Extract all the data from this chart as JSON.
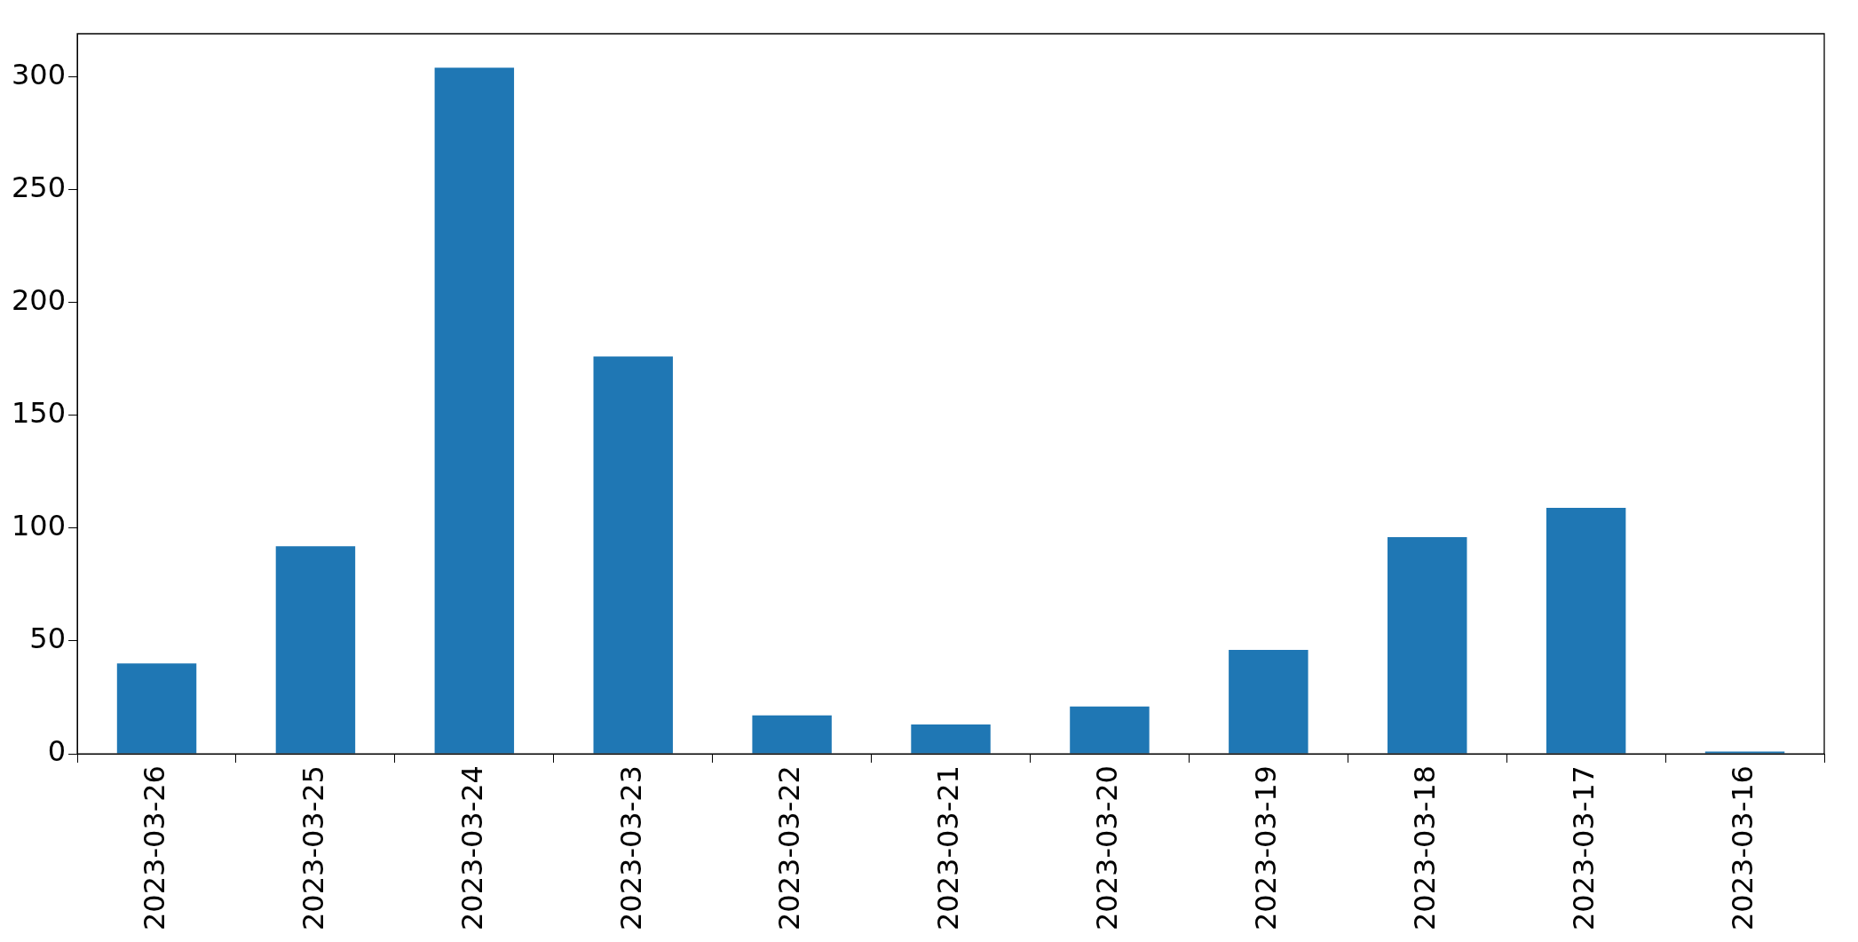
{
  "chart_data": {
    "type": "bar",
    "categories": [
      "2023-03-26",
      "2023-03-25",
      "2023-03-24",
      "2023-03-23",
      "2023-03-22",
      "2023-03-21",
      "2023-03-20",
      "2023-03-19",
      "2023-03-18",
      "2023-03-17",
      "2023-03-16"
    ],
    "values": [
      40,
      92,
      304,
      176,
      17,
      13,
      21,
      46,
      96,
      109,
      1
    ],
    "color": "#1f77b4",
    "ylim": [
      0,
      319
    ],
    "yticks": [
      0,
      50,
      100,
      150,
      200,
      250,
      300
    ],
    "grid": false,
    "legend": false
  }
}
